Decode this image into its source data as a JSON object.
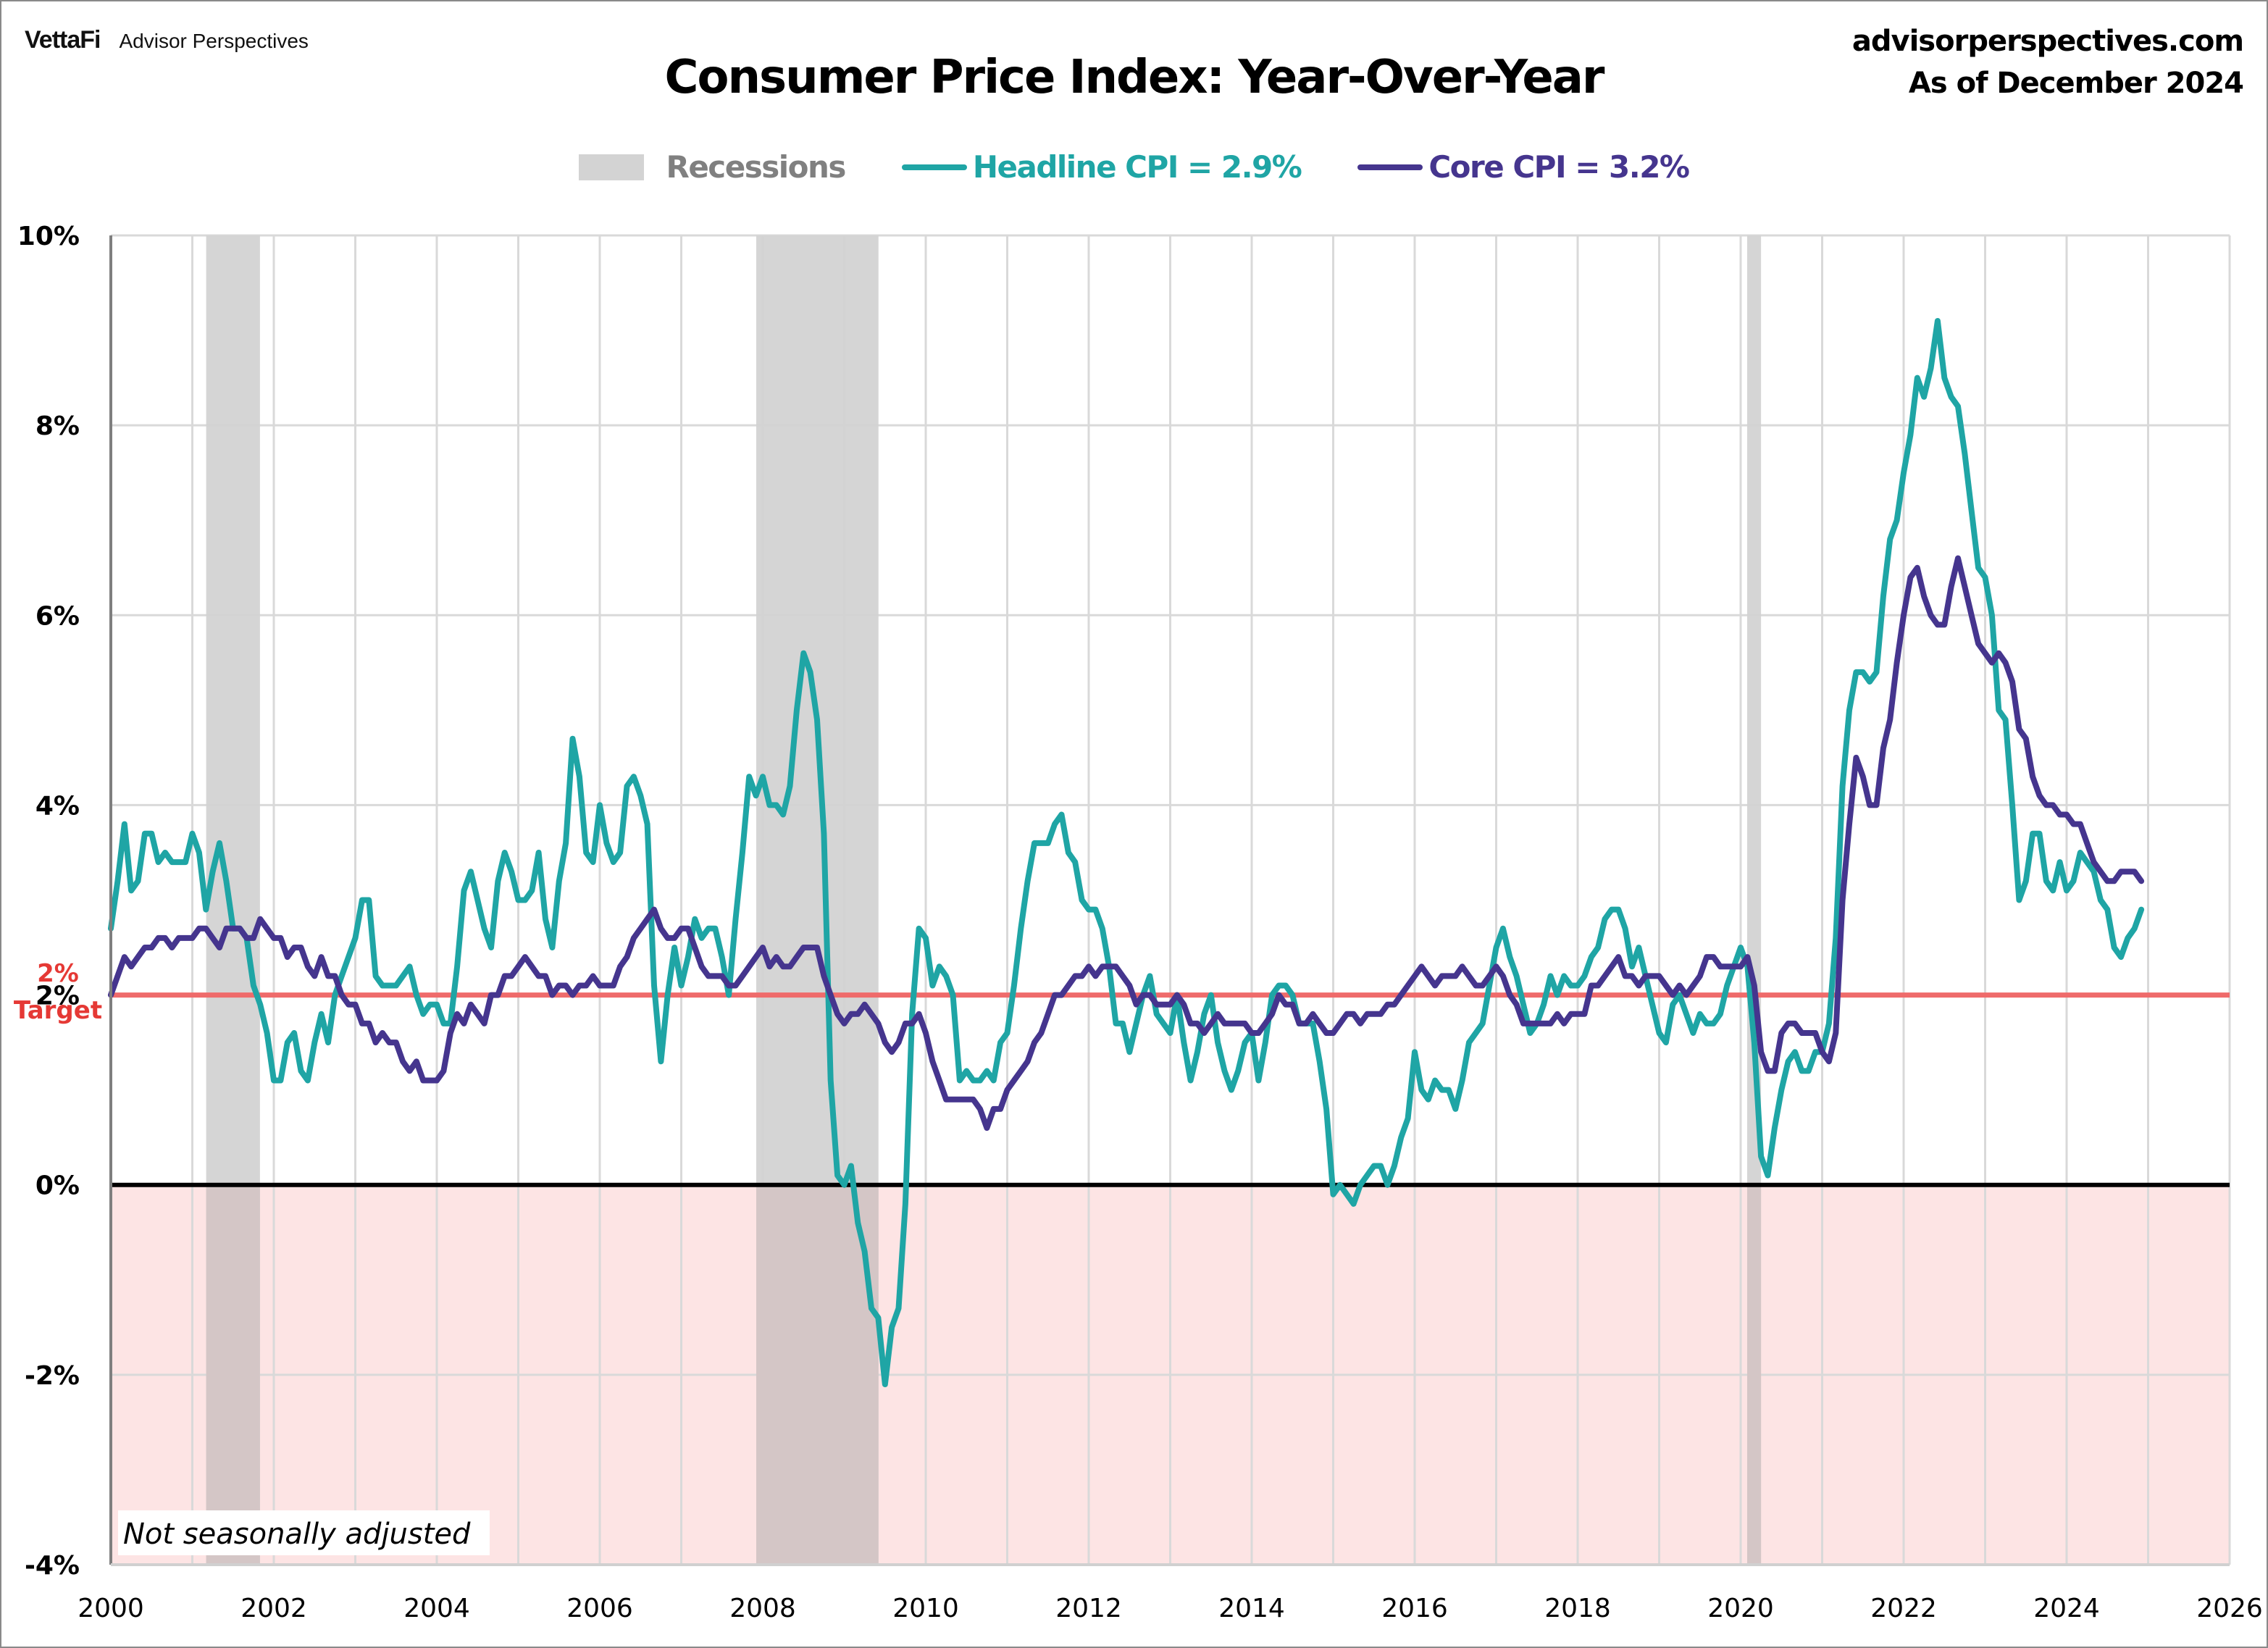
{
  "header": {
    "brand_logo": "VettaFi",
    "brand_sub": "Advisor Perspectives",
    "site": "advisorperspectives.com",
    "as_of": "As of December 2024"
  },
  "colors": {
    "headline": "#1FA5A5",
    "core": "#45358E",
    "recession": "#d3d3d3",
    "target": "#ef6b6b",
    "negative_zone": "#fde4e4",
    "legend_recession_text": "#808080"
  },
  "chart_data": {
    "type": "line",
    "title": "Consumer Price Index: Year-Over-Year",
    "xlabel": "",
    "ylabel": "",
    "xlim": [
      2000,
      2026
    ],
    "ylim": [
      -4,
      10
    ],
    "grid": true,
    "legend_position": "top-center",
    "x_ticks": [
      "2000",
      "2002",
      "2004",
      "2006",
      "2008",
      "2010",
      "2012",
      "2014",
      "2016",
      "2018",
      "2020",
      "2022",
      "2024",
      "2026"
    ],
    "y_ticks": [
      "10%",
      "8%",
      "6%",
      "4%",
      "2%",
      "0%",
      "-2%",
      "-4%"
    ],
    "y_tick_values": [
      10,
      8,
      6,
      4,
      2,
      0,
      -2,
      -4
    ],
    "legend": {
      "recessions": "Recessions",
      "headline": "Headline CPI = 2.9%",
      "core": "Core CPI =  3.2%"
    },
    "annotations": {
      "target_value": 2,
      "target_label_1": "2%",
      "target_label_2": "Target",
      "note": "Not seasonally adjusted"
    },
    "recessions": [
      {
        "start": 2001.17,
        "end": 2001.83
      },
      {
        "start": 2007.92,
        "end": 2009.42
      },
      {
        "start": 2020.08,
        "end": 2020.25
      }
    ],
    "x_start": 2000.0,
    "x_step_months": 1,
    "series": [
      {
        "name": "Headline CPI",
        "values": [
          2.7,
          3.2,
          3.8,
          3.1,
          3.2,
          3.7,
          3.7,
          3.4,
          3.5,
          3.4,
          3.4,
          3.4,
          3.7,
          3.5,
          2.9,
          3.3,
          3.6,
          3.2,
          2.7,
          2.7,
          2.6,
          2.1,
          1.9,
          1.6,
          1.1,
          1.1,
          1.5,
          1.6,
          1.2,
          1.1,
          1.5,
          1.8,
          1.5,
          2.0,
          2.2,
          2.4,
          2.6,
          3.0,
          3.0,
          2.2,
          2.1,
          2.1,
          2.1,
          2.2,
          2.3,
          2.0,
          1.8,
          1.9,
          1.9,
          1.7,
          1.7,
          2.3,
          3.1,
          3.3,
          3.0,
          2.7,
          2.5,
          3.2,
          3.5,
          3.3,
          3.0,
          3.0,
          3.1,
          3.5,
          2.8,
          2.5,
          3.2,
          3.6,
          4.7,
          4.3,
          3.5,
          3.4,
          4.0,
          3.6,
          3.4,
          3.5,
          4.2,
          4.3,
          4.1,
          3.8,
          2.1,
          1.3,
          2.0,
          2.5,
          2.1,
          2.4,
          2.8,
          2.6,
          2.7,
          2.7,
          2.4,
          2.0,
          2.8,
          3.5,
          4.3,
          4.1,
          4.3,
          4.0,
          4.0,
          3.9,
          4.2,
          5.0,
          5.6,
          5.4,
          4.9,
          3.7,
          1.1,
          0.1,
          0.0,
          0.2,
          -0.4,
          -0.7,
          -1.3,
          -1.4,
          -2.1,
          -1.5,
          -1.3,
          -0.2,
          1.8,
          2.7,
          2.6,
          2.1,
          2.3,
          2.2,
          2.0,
          1.1,
          1.2,
          1.1,
          1.1,
          1.2,
          1.1,
          1.5,
          1.6,
          2.1,
          2.7,
          3.2,
          3.6,
          3.6,
          3.6,
          3.8,
          3.9,
          3.5,
          3.4,
          3.0,
          2.9,
          2.9,
          2.7,
          2.3,
          1.7,
          1.7,
          1.4,
          1.7,
          2.0,
          2.2,
          1.8,
          1.7,
          1.6,
          2.0,
          1.5,
          1.1,
          1.4,
          1.8,
          2.0,
          1.5,
          1.2,
          1.0,
          1.2,
          1.5,
          1.6,
          1.1,
          1.5,
          2.0,
          2.1,
          2.1,
          2.0,
          1.7,
          1.7,
          1.7,
          1.3,
          0.8,
          -0.1,
          0.0,
          -0.1,
          -0.2,
          0.0,
          0.1,
          0.2,
          0.2,
          0.0,
          0.2,
          0.5,
          0.7,
          1.4,
          1.0,
          0.9,
          1.1,
          1.0,
          1.0,
          0.8,
          1.1,
          1.5,
          1.6,
          1.7,
          2.1,
          2.5,
          2.7,
          2.4,
          2.2,
          1.9,
          1.6,
          1.7,
          1.9,
          2.2,
          2.0,
          2.2,
          2.1,
          2.1,
          2.2,
          2.4,
          2.5,
          2.8,
          2.9,
          2.9,
          2.7,
          2.3,
          2.5,
          2.2,
          1.9,
          1.6,
          1.5,
          1.9,
          2.0,
          1.8,
          1.6,
          1.8,
          1.7,
          1.7,
          1.8,
          2.1,
          2.3,
          2.5,
          2.3,
          1.5,
          0.3,
          0.1,
          0.6,
          1.0,
          1.3,
          1.4,
          1.2,
          1.2,
          1.4,
          1.4,
          1.7,
          2.6,
          4.2,
          5.0,
          5.4,
          5.4,
          5.3,
          5.4,
          6.2,
          6.8,
          7.0,
          7.5,
          7.9,
          8.5,
          8.3,
          8.6,
          9.1,
          8.5,
          8.3,
          8.2,
          7.7,
          7.1,
          6.5,
          6.4,
          6.0,
          5.0,
          4.9,
          4.0,
          3.0,
          3.2,
          3.7,
          3.7,
          3.2,
          3.1,
          3.4,
          3.1,
          3.2,
          3.5,
          3.4,
          3.3,
          3.0,
          2.9,
          2.5,
          2.4,
          2.6,
          2.7,
          2.9
        ]
      },
      {
        "name": "Core CPI",
        "values": [
          2.0,
          2.2,
          2.4,
          2.3,
          2.4,
          2.5,
          2.5,
          2.6,
          2.6,
          2.5,
          2.6,
          2.6,
          2.6,
          2.7,
          2.7,
          2.6,
          2.5,
          2.7,
          2.7,
          2.7,
          2.6,
          2.6,
          2.8,
          2.7,
          2.6,
          2.6,
          2.4,
          2.5,
          2.5,
          2.3,
          2.2,
          2.4,
          2.2,
          2.2,
          2.0,
          1.9,
          1.9,
          1.7,
          1.7,
          1.5,
          1.6,
          1.5,
          1.5,
          1.3,
          1.2,
          1.3,
          1.1,
          1.1,
          1.1,
          1.2,
          1.6,
          1.8,
          1.7,
          1.9,
          1.8,
          1.7,
          2.0,
          2.0,
          2.2,
          2.2,
          2.3,
          2.4,
          2.3,
          2.2,
          2.2,
          2.0,
          2.1,
          2.1,
          2.0,
          2.1,
          2.1,
          2.2,
          2.1,
          2.1,
          2.1,
          2.3,
          2.4,
          2.6,
          2.7,
          2.8,
          2.9,
          2.7,
          2.6,
          2.6,
          2.7,
          2.7,
          2.5,
          2.3,
          2.2,
          2.2,
          2.2,
          2.1,
          2.1,
          2.2,
          2.3,
          2.4,
          2.5,
          2.3,
          2.4,
          2.3,
          2.3,
          2.4,
          2.5,
          2.5,
          2.5,
          2.2,
          2.0,
          1.8,
          1.7,
          1.8,
          1.8,
          1.9,
          1.8,
          1.7,
          1.5,
          1.4,
          1.5,
          1.7,
          1.7,
          1.8,
          1.6,
          1.3,
          1.1,
          0.9,
          0.9,
          0.9,
          0.9,
          0.9,
          0.8,
          0.6,
          0.8,
          0.8,
          1.0,
          1.1,
          1.2,
          1.3,
          1.5,
          1.6,
          1.8,
          2.0,
          2.0,
          2.1,
          2.2,
          2.2,
          2.3,
          2.2,
          2.3,
          2.3,
          2.3,
          2.2,
          2.1,
          1.9,
          2.0,
          2.0,
          1.9,
          1.9,
          1.9,
          2.0,
          1.9,
          1.7,
          1.7,
          1.6,
          1.7,
          1.8,
          1.7,
          1.7,
          1.7,
          1.7,
          1.6,
          1.6,
          1.7,
          1.8,
          2.0,
          1.9,
          1.9,
          1.7,
          1.7,
          1.8,
          1.7,
          1.6,
          1.6,
          1.7,
          1.8,
          1.8,
          1.7,
          1.8,
          1.8,
          1.8,
          1.9,
          1.9,
          2.0,
          2.1,
          2.2,
          2.3,
          2.2,
          2.1,
          2.2,
          2.2,
          2.2,
          2.3,
          2.2,
          2.1,
          2.1,
          2.2,
          2.3,
          2.2,
          2.0,
          1.9,
          1.7,
          1.7,
          1.7,
          1.7,
          1.7,
          1.8,
          1.7,
          1.8,
          1.8,
          1.8,
          2.1,
          2.1,
          2.2,
          2.3,
          2.4,
          2.2,
          2.2,
          2.1,
          2.2,
          2.2,
          2.2,
          2.1,
          2.0,
          2.1,
          2.0,
          2.1,
          2.2,
          2.4,
          2.4,
          2.3,
          2.3,
          2.3,
          2.3,
          2.4,
          2.1,
          1.4,
          1.2,
          1.2,
          1.6,
          1.7,
          1.7,
          1.6,
          1.6,
          1.6,
          1.4,
          1.3,
          1.6,
          3.0,
          3.8,
          4.5,
          4.3,
          4.0,
          4.0,
          4.6,
          4.9,
          5.5,
          6.0,
          6.4,
          6.5,
          6.2,
          6.0,
          5.9,
          5.9,
          6.3,
          6.6,
          6.3,
          6.0,
          5.7,
          5.6,
          5.5,
          5.6,
          5.5,
          5.3,
          4.8,
          4.7,
          4.3,
          4.1,
          4.0,
          4.0,
          3.9,
          3.9,
          3.8,
          3.8,
          3.6,
          3.4,
          3.3,
          3.2,
          3.2,
          3.3,
          3.3,
          3.3,
          3.2
        ]
      }
    ]
  }
}
